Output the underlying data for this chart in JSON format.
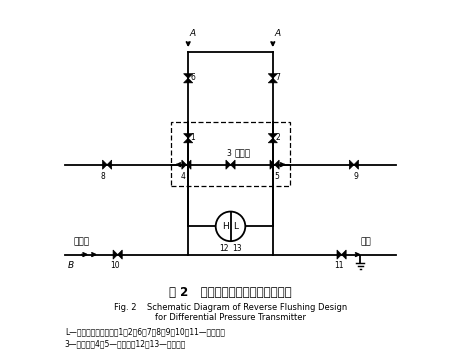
{
  "title_cn": "图 2   差压变送器反冲水设计示意图",
  "title_en": "Fig. 2    Schematic Diagram of Reverse Flushing Design\nfor Differential Pressure Transmitter",
  "caption_line1": "L—压力变送器低压侧；1、2、6、7、8、9、10、11—截止阀；",
  "caption_line2": "3—平衡阀；4、5—排污阀；12、13—排污丝堵",
  "bg_color": "#ffffff",
  "line_color": "#000000",
  "pipe_lw": 1.3,
  "valve_size": 0.13
}
